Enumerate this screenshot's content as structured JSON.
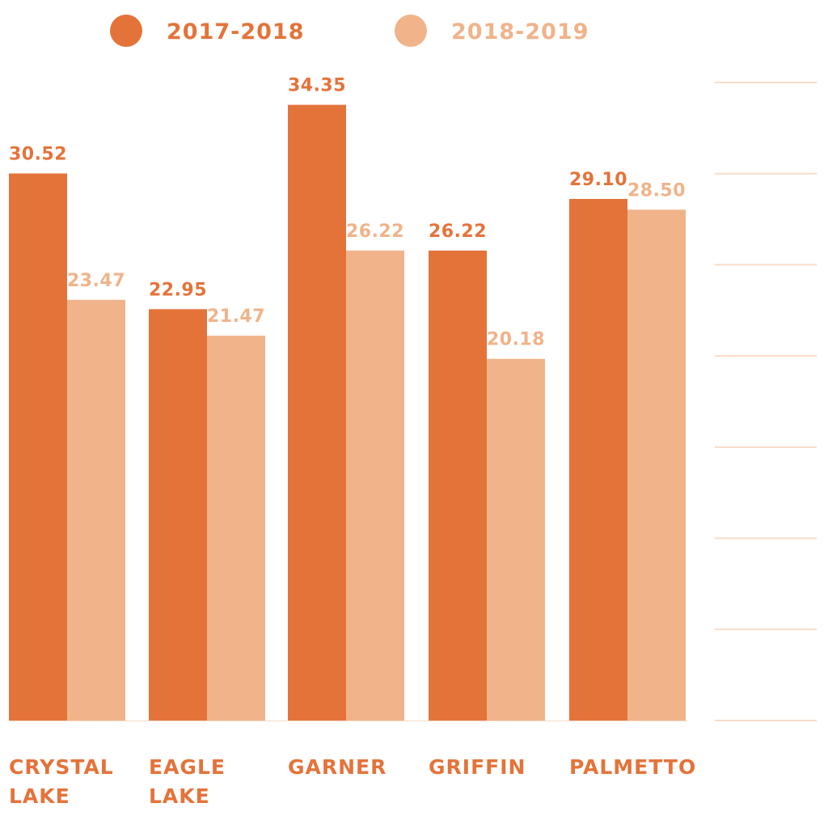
{
  "chart_data": {
    "type": "bar",
    "categories": [
      [
        "CRYSTAL",
        "LAKE"
      ],
      [
        "EAGLE",
        "LAKE"
      ],
      [
        "GARNER"
      ],
      [
        "GRIFFIN"
      ],
      [
        "PALMETTO"
      ]
    ],
    "series": [
      {
        "name": "2017-2018",
        "values": [
          30.52,
          22.95,
          34.35,
          26.22,
          29.1
        ],
        "labels": [
          "30.52",
          "22.95",
          "34.35",
          "26.22",
          "29.10"
        ],
        "color": "#E4733A"
      },
      {
        "name": "2018-2019",
        "values": [
          23.47,
          21.47,
          26.22,
          20.18,
          28.5
        ],
        "labels": [
          "23.47",
          "21.47",
          "26.22",
          "20.18",
          "28.50"
        ],
        "color": "#F0B38A"
      }
    ],
    "title": "",
    "xlabel": "",
    "ylabel": "",
    "ylim": [
      0,
      38
    ],
    "grid": true,
    "gridlines_count": 8,
    "gridline_color": "#F7DCC8",
    "legend_position": "top"
  }
}
